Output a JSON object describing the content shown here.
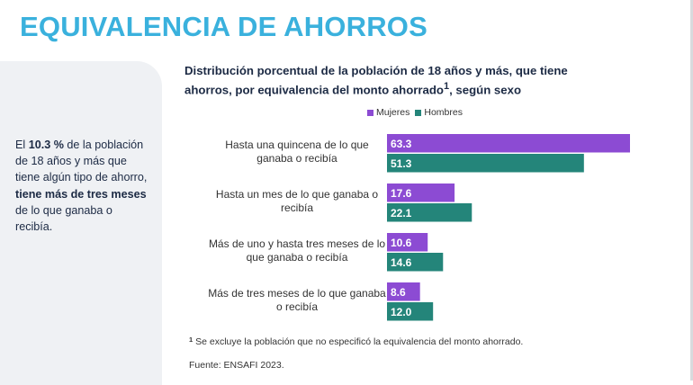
{
  "page_title": "EQUIVALENCIA DE AHORROS",
  "side_text": {
    "p1": "El ",
    "b1": "10.3 %",
    "p2": " de la población de 18 años y más que tiene algún tipo de ahorro, ",
    "b2": "tiene más de tres meses",
    "p3": " de lo que ganaba o recibía."
  },
  "chart_title": {
    "line1": "Distribución porcentual de la población de 18 años y más, que tiene",
    "line2a": "ahorros, por equivalencia del monto ahorrado",
    "sup": "1",
    "line2b": ", según sexo"
  },
  "footnote": {
    "marker": "1",
    "text": " Se excluye la población que no especificó la equivalencia del monto ahorrado."
  },
  "source": "Fuente: ENSAFI 2023.",
  "colors": {
    "mujeres": "#8c4bd3",
    "hombres": "#24857a",
    "title": "#3ab1dd"
  },
  "chart_data": {
    "type": "bar",
    "orientation": "horizontal",
    "categories": [
      [
        "Hasta una quincena de lo que",
        "ganaba o recibía"
      ],
      [
        "Hasta un mes de lo que ganaba o",
        "recibía"
      ],
      [
        "Más de uno y hasta tres meses de lo",
        "que ganaba o recibía"
      ],
      [
        "Más de tres meses de lo que ganaba",
        "o recibía"
      ]
    ],
    "series": [
      {
        "name": "Mujeres",
        "color": "#8c4bd3",
        "values": [
          63.3,
          17.6,
          10.6,
          8.6
        ],
        "labels": [
          "63.3",
          "17.6",
          "10.6",
          "8.6"
        ]
      },
      {
        "name": "Hombres",
        "color": "#24857a",
        "values": [
          51.3,
          22.1,
          14.6,
          12.0
        ],
        "labels": [
          "51.3",
          "22.1",
          "14.6",
          "12.0"
        ]
      }
    ],
    "xlim": [
      0,
      63.3
    ],
    "legend_position": "top",
    "grid": false
  }
}
